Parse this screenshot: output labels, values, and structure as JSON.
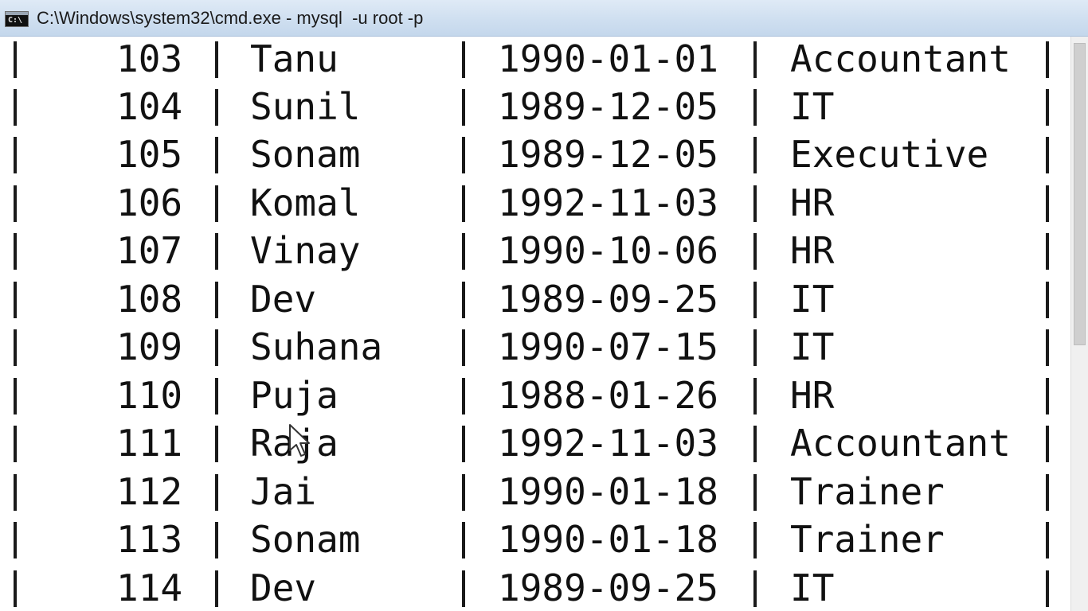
{
  "window": {
    "title": "C:\\Windows\\system32\\cmd.exe - mysql  -u root -p",
    "icon": "cmd-icon",
    "icon_glyph": "C:\\"
  },
  "table": {
    "rows": [
      {
        "id": "103",
        "name": "Tanu",
        "dob": "1990-01-01",
        "dept": "Accountant"
      },
      {
        "id": "104",
        "name": "Sunil",
        "dob": "1989-12-05",
        "dept": "IT"
      },
      {
        "id": "105",
        "name": "Sonam",
        "dob": "1989-12-05",
        "dept": "Executive"
      },
      {
        "id": "106",
        "name": "Komal",
        "dob": "1992-11-03",
        "dept": "HR"
      },
      {
        "id": "107",
        "name": "Vinay",
        "dob": "1990-10-06",
        "dept": "HR"
      },
      {
        "id": "108",
        "name": "Dev",
        "dob": "1989-09-25",
        "dept": "IT"
      },
      {
        "id": "109",
        "name": "Suhana",
        "dob": "1990-07-15",
        "dept": "IT"
      },
      {
        "id": "110",
        "name": "Puja",
        "dob": "1988-01-26",
        "dept": "HR"
      },
      {
        "id": "111",
        "name": "Raja",
        "dob": "1992-11-03",
        "dept": "Accountant"
      },
      {
        "id": "112",
        "name": "Jai",
        "dob": "1990-01-18",
        "dept": "Trainer"
      },
      {
        "id": "113",
        "name": "Sonam",
        "dob": "1990-01-18",
        "dept": "Trainer"
      },
      {
        "id": "114",
        "name": "Dev",
        "dob": "1989-09-25",
        "dept": "IT"
      }
    ]
  }
}
